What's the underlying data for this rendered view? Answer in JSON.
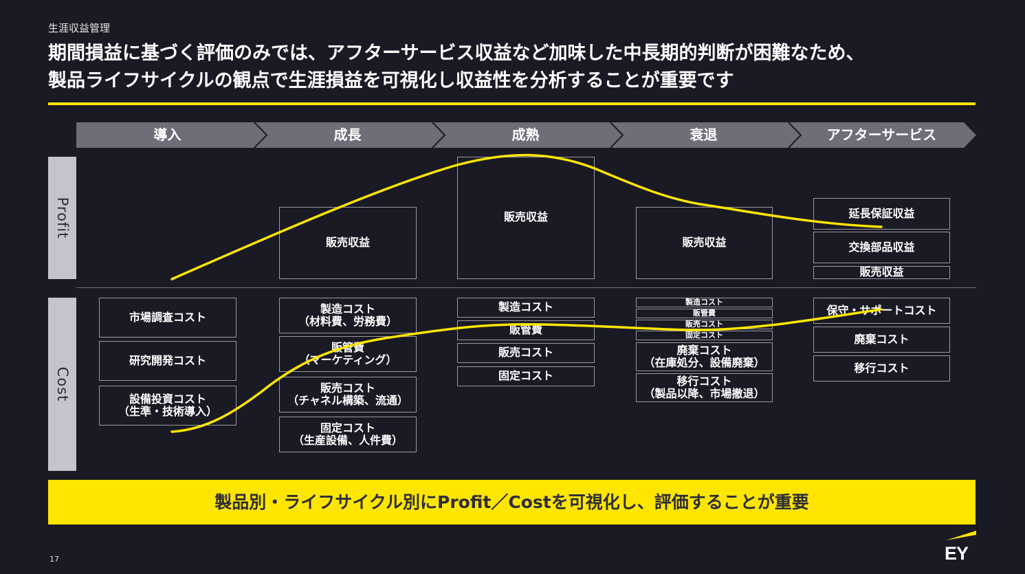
{
  "header": {
    "subtitle": "生涯収益管理",
    "title_line1": "期間損益に基づく評価のみでは、アフターサービス収益など加味した中長期的判断が困難なため、",
    "title_line2": "製品ライフサイクルの観点で生涯損益を可視化し収益性を分析することが重要です"
  },
  "phases": [
    "導入",
    "成長",
    "成熟",
    "衰退",
    "アフターサービス"
  ],
  "axis_labels": {
    "profit": "Profit",
    "cost": "Cost"
  },
  "profit_boxes": {
    "growth": [
      "販売収益"
    ],
    "maturity": [
      "販売収益"
    ],
    "decline": [
      "販売収益"
    ],
    "after": [
      "延長保証収益",
      "交換部品収益",
      "販売収益"
    ]
  },
  "cost_boxes": {
    "intro": [
      [
        "市場調査コスト"
      ],
      [
        "研究開発コスト"
      ],
      [
        "設備投資コスト",
        "（生準・技術導入）"
      ]
    ],
    "growth": [
      [
        "製造コスト",
        "（材料費、労務費）"
      ],
      [
        "販管費",
        "（マーケティング）"
      ],
      [
        "販売コスト",
        "（チャネル構築、流通）"
      ],
      [
        "固定コスト",
        "（生産設備、人件費）"
      ]
    ],
    "maturity": [
      [
        "製造コスト"
      ],
      [
        "販管費"
      ],
      [
        "販売コスト"
      ],
      [
        "固定コスト"
      ]
    ],
    "decline_small": [
      "製造コスト",
      "販管費",
      "販売コスト",
      "固定コスト"
    ],
    "decline": [
      [
        "廃棄コスト",
        "（在庫処分、設備廃棄）"
      ],
      [
        "移行コスト",
        "（製品以降、市場撤退）"
      ]
    ],
    "after": [
      [
        "保守・サポートコスト"
      ],
      [
        "廃棄コスト"
      ],
      [
        "移行コスト"
      ]
    ]
  },
  "banner": "製品別・ライフサイクル別にProfit／Costを可視化し、評価することが重要",
  "footer": {
    "page_number": "17",
    "logo": "EY"
  },
  "colors": {
    "accent": "#ffe600",
    "background": "#1a1a24",
    "phase_bar": "#6e6e78",
    "side_label": "#c4c4cc"
  }
}
